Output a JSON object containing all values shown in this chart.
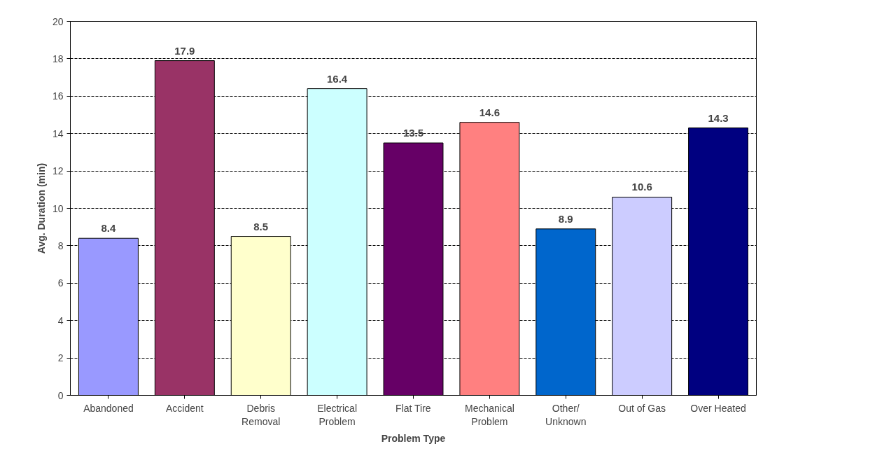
{
  "chart_data": {
    "type": "bar",
    "xlabel": "Problem Type",
    "ylabel": "Avg. Duration (min)",
    "categories": [
      "Abandoned",
      "Accident",
      "Debris\nRemoval",
      "Electrical\nProblem",
      "Flat Tire",
      "Mechanical\nProblem",
      "Other/\nUnknown",
      "Out of Gas",
      "Over Heated"
    ],
    "values": [
      8.4,
      17.9,
      8.5,
      16.4,
      13.5,
      14.6,
      8.9,
      10.6,
      14.3
    ],
    "colors": [
      "#9999ff",
      "#993366",
      "#ffffcc",
      "#ccffff",
      "#660066",
      "#ff8080",
      "#0066cc",
      "#ccccff",
      "#000080"
    ],
    "ylim": [
      0,
      20
    ],
    "yticks": [
      0,
      2,
      4,
      6,
      8,
      10,
      12,
      14,
      16,
      18,
      20
    ],
    "grid": "y",
    "data_labels": true
  }
}
